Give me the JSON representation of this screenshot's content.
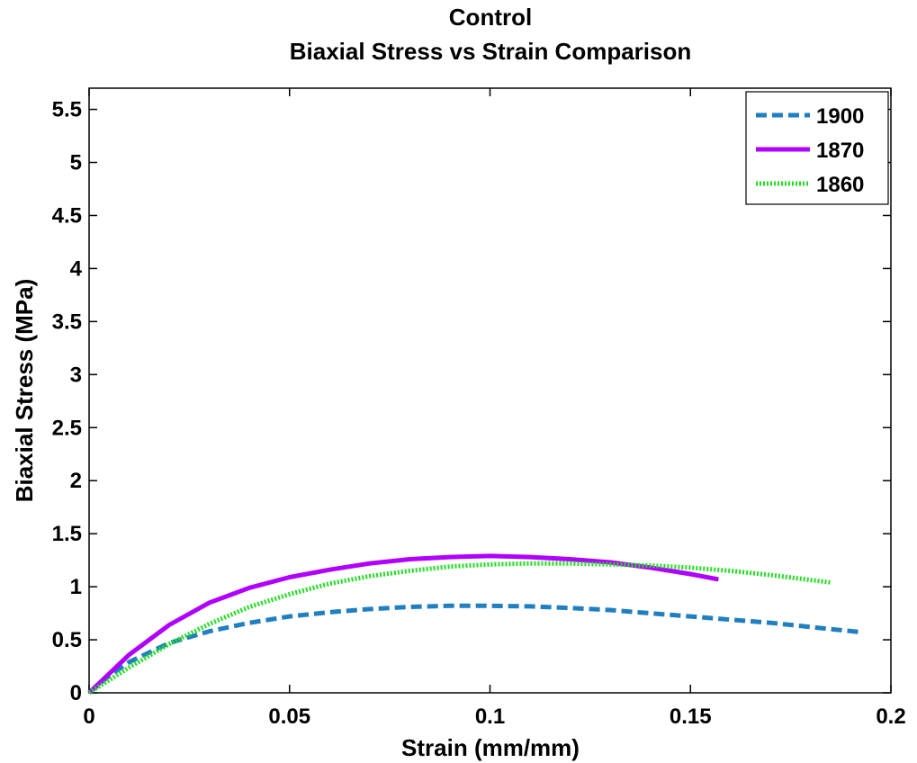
{
  "chart_data": {
    "type": "line",
    "title": "Control",
    "subtitle": "Biaxial Stress vs Strain Comparison",
    "xlabel": "Strain (mm/mm)",
    "ylabel": "Biaxial Stress (MPa)",
    "xlim": [
      0,
      0.2
    ],
    "ylim": [
      0,
      5.7
    ],
    "xticks": [
      0,
      0.05,
      0.1,
      0.15,
      0.2
    ],
    "xtick_labels": [
      "0",
      "0.05",
      "0.1",
      "0.15",
      "0.2"
    ],
    "yticks": [
      0,
      0.5,
      1,
      1.5,
      2,
      2.5,
      3,
      3.5,
      4,
      4.5,
      5,
      5.5
    ],
    "ytick_labels": [
      "0",
      "0.5",
      "1",
      "1.5",
      "2",
      "2.5",
      "3",
      "3.5",
      "4",
      "4.5",
      "5",
      "5.5"
    ],
    "grid": false,
    "legend_position": "top-right",
    "series": [
      {
        "name": "1900",
        "color": "#1f7fc0",
        "style": "dashed",
        "x": [
          0,
          0.005,
          0.01,
          0.02,
          0.03,
          0.04,
          0.05,
          0.06,
          0.07,
          0.08,
          0.09,
          0.1,
          0.11,
          0.12,
          0.13,
          0.14,
          0.15,
          0.16,
          0.17,
          0.18,
          0.193
        ],
        "y": [
          0,
          0.16,
          0.29,
          0.47,
          0.58,
          0.66,
          0.72,
          0.76,
          0.79,
          0.81,
          0.82,
          0.82,
          0.815,
          0.8,
          0.78,
          0.75,
          0.72,
          0.69,
          0.66,
          0.62,
          0.57
        ]
      },
      {
        "name": "1870",
        "color": "#b000ff",
        "style": "solid",
        "x": [
          0,
          0.005,
          0.01,
          0.02,
          0.03,
          0.04,
          0.05,
          0.06,
          0.07,
          0.08,
          0.09,
          0.1,
          0.11,
          0.12,
          0.13,
          0.14,
          0.15,
          0.157
        ],
        "y": [
          0,
          0.18,
          0.36,
          0.64,
          0.85,
          0.99,
          1.09,
          1.16,
          1.22,
          1.26,
          1.28,
          1.29,
          1.28,
          1.26,
          1.23,
          1.18,
          1.12,
          1.07
        ]
      },
      {
        "name": "1860",
        "color": "#22dd22",
        "style": "dotted",
        "x": [
          0,
          0.005,
          0.01,
          0.02,
          0.03,
          0.04,
          0.05,
          0.06,
          0.07,
          0.08,
          0.09,
          0.1,
          0.11,
          0.12,
          0.13,
          0.14,
          0.15,
          0.16,
          0.17,
          0.185
        ],
        "y": [
          0,
          0.12,
          0.24,
          0.46,
          0.65,
          0.81,
          0.93,
          1.03,
          1.1,
          1.15,
          1.19,
          1.21,
          1.22,
          1.22,
          1.21,
          1.2,
          1.18,
          1.15,
          1.11,
          1.04
        ]
      }
    ]
  }
}
